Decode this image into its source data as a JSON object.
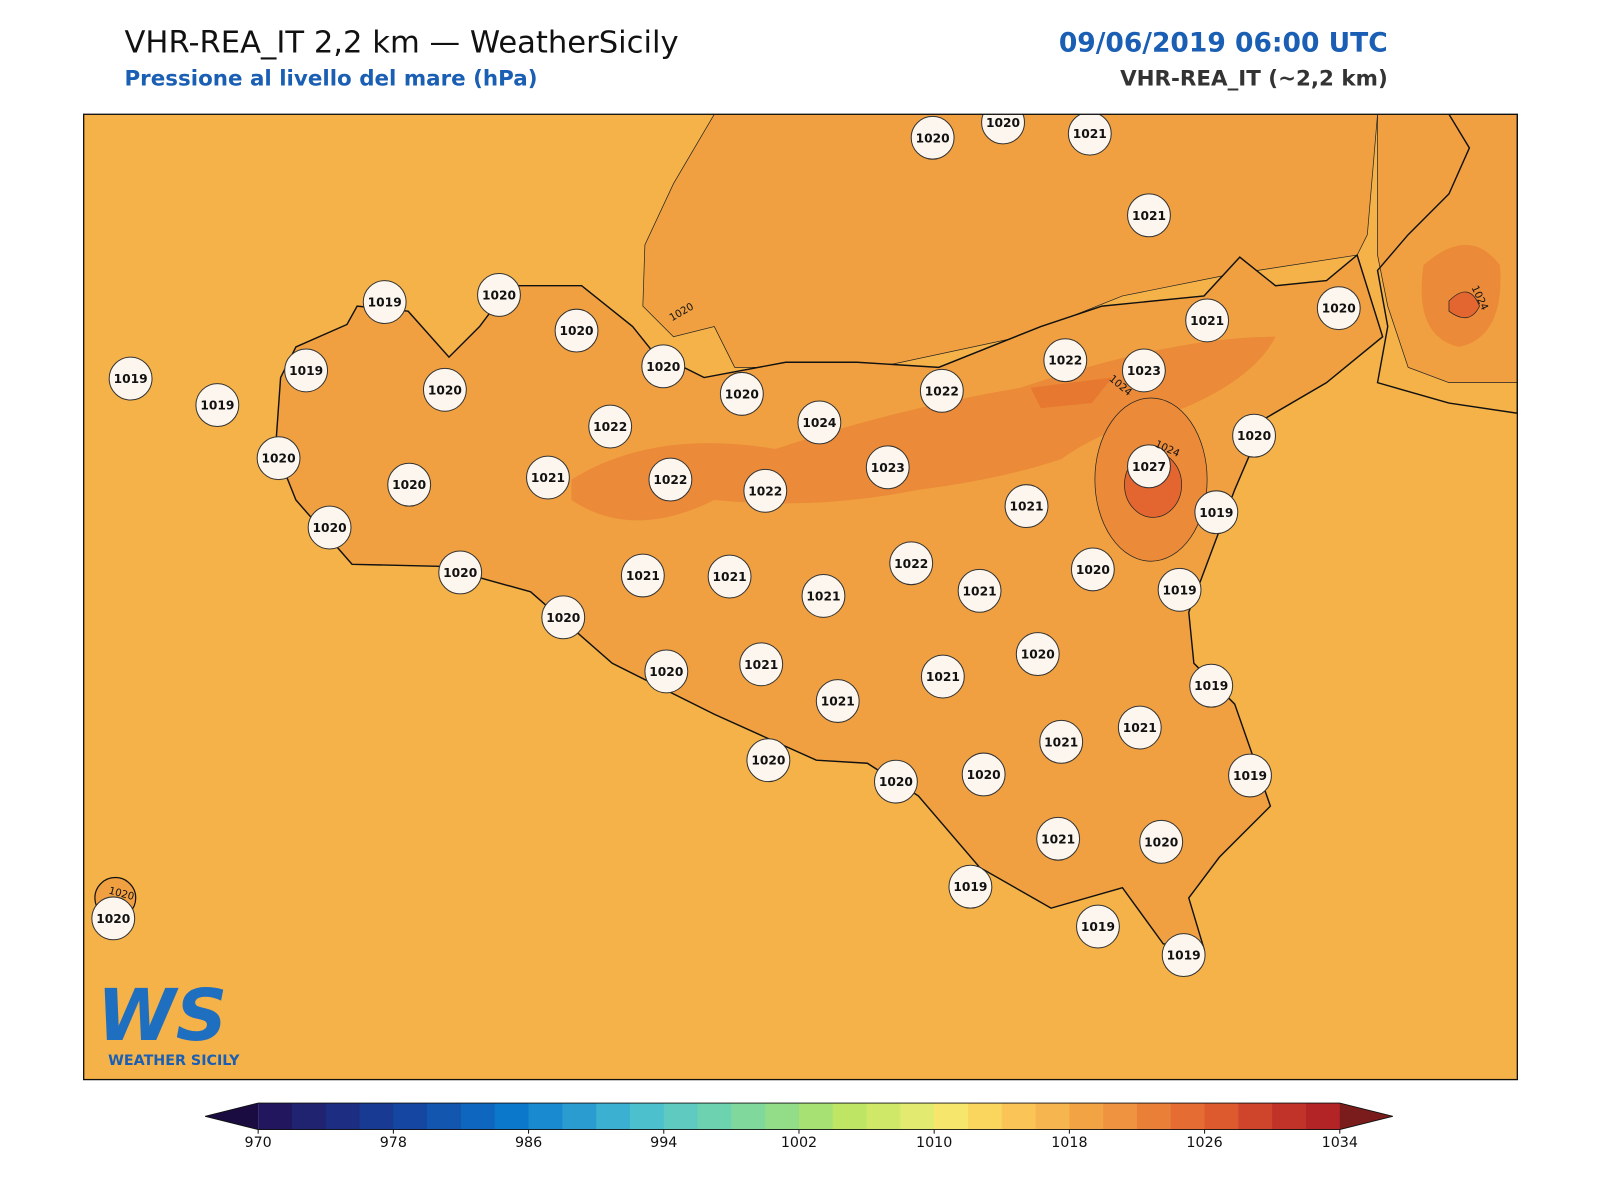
{
  "header": {
    "title": "VHR-REA_IT 2,2 km — WeatherSicily",
    "subtitle": "Pressione al livello del mare (hPa)",
    "datetime": "09/06/2019 06:00 UTC",
    "model": "VHR-REA_IT (~2,2 km)"
  },
  "stations": [
    1020,
    1020,
    1021,
    1021,
    1019,
    1020,
    1020,
    1021,
    1020,
    1019,
    1019,
    1020,
    1020,
    1022,
    1023,
    1022,
    1019,
    1020,
    1022,
    1024,
    1020,
    1020,
    1023,
    1027,
    1020,
    1021,
    1022,
    1022,
    1021,
    1019,
    1020,
    1022,
    1020,
    1021,
    1021,
    1021,
    1021,
    1020,
    1019,
    1020,
    1020,
    1020,
    1021,
    1021,
    1019,
    1021,
    1021,
    1021,
    1020,
    1020,
    1020,
    1019,
    1021,
    1020,
    1019,
    1019,
    1019,
    1020
  ],
  "contour_labels": [
    "1020",
    "1024",
    "1024",
    "1024",
    "1020"
  ],
  "logo": {
    "mark": "WS",
    "name": "WEATHER SICILY"
  },
  "colorbar": {
    "lim": [
      970,
      1034
    ],
    "ticks": [
      970,
      978,
      986,
      994,
      1002,
      1010,
      1018,
      1026,
      1034
    ],
    "colors": [
      "#22175e",
      "#1f2370",
      "#1c2d82",
      "#183a92",
      "#1547a2",
      "#1256b0",
      "#0f66bf",
      "#0b78cb",
      "#1a8ad0",
      "#2a9ccf",
      "#3bb0d0",
      "#4cc0cc",
      "#5ecac0",
      "#6dd2b0",
      "#80d89d",
      "#93dc88",
      "#a8e173",
      "#bee564",
      "#d0e868",
      "#e2eb70",
      "#f7e66c",
      "#fad65f",
      "#fac457",
      "#f6b54e",
      "#f2a445",
      "#ef9340",
      "#ea7f38",
      "#e56c32",
      "#dc5a2e",
      "#cf452b",
      "#c13228",
      "#b22425"
    ],
    "extend_colors": [
      "#1a0c40",
      "#7a1c1c"
    ]
  }
}
